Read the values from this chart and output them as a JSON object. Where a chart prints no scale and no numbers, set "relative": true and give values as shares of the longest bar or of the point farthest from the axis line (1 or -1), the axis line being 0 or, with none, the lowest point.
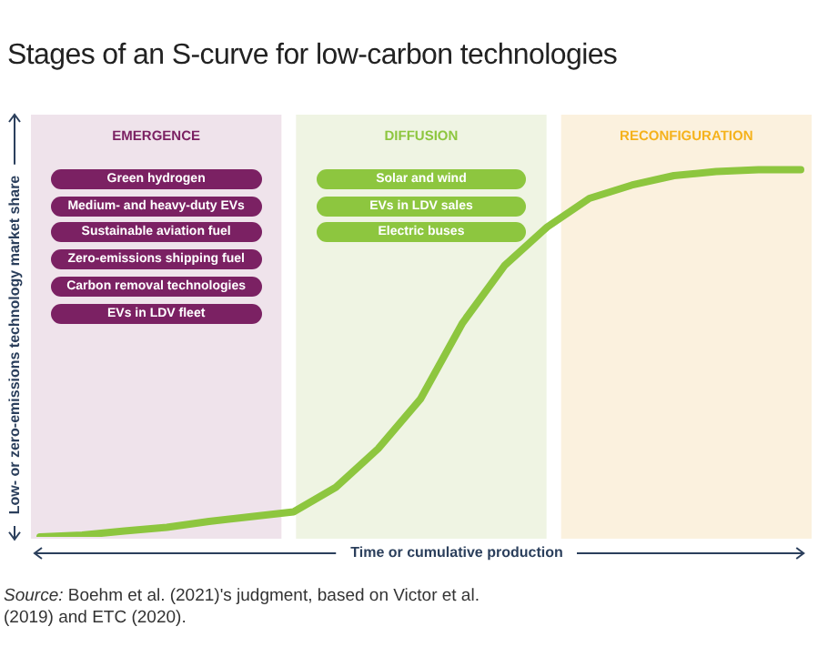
{
  "chart_data": {
    "type": "line",
    "title": "Stages of an S-curve for low-carbon technologies",
    "xlabel": "Time or cumulative production",
    "ylabel": "Low- or zero-emissions technology market share",
    "relative": true,
    "marker": "none",
    "line_style": "solid",
    "categories": [
      null,
      null,
      null,
      null,
      null,
      null,
      null,
      null,
      null,
      null,
      null,
      null,
      null,
      null,
      null,
      null,
      null,
      null,
      null
    ],
    "series": [
      {
        "color": "#8dc63f",
        "values": [
          0,
          0.005,
          0.016,
          0.026,
          0.042,
          0.055,
          0.068,
          0.135,
          0.24,
          0.375,
          0.583,
          0.74,
          0.844,
          0.922,
          0.958,
          0.984,
          0.995,
          1,
          1
        ]
      }
    ],
    "annotations": [
      "EMERGENCE",
      "Green hydrogen",
      "Medium- and heavy-duty EVs",
      "Sustainable aviation fuel",
      "Zero-emissions shipping fuel",
      "Carbon removal technologies",
      "EVs in LDV fleet",
      "DIFFUSION",
      "Solar and wind",
      "EVs in LDV sales",
      "Electric buses",
      "RECONFIGURATION",
      "Source: Boehm et al. (2021)'s judgment, based on Victor et al. (2019) and ETC (2020)."
    ]
  }
}
